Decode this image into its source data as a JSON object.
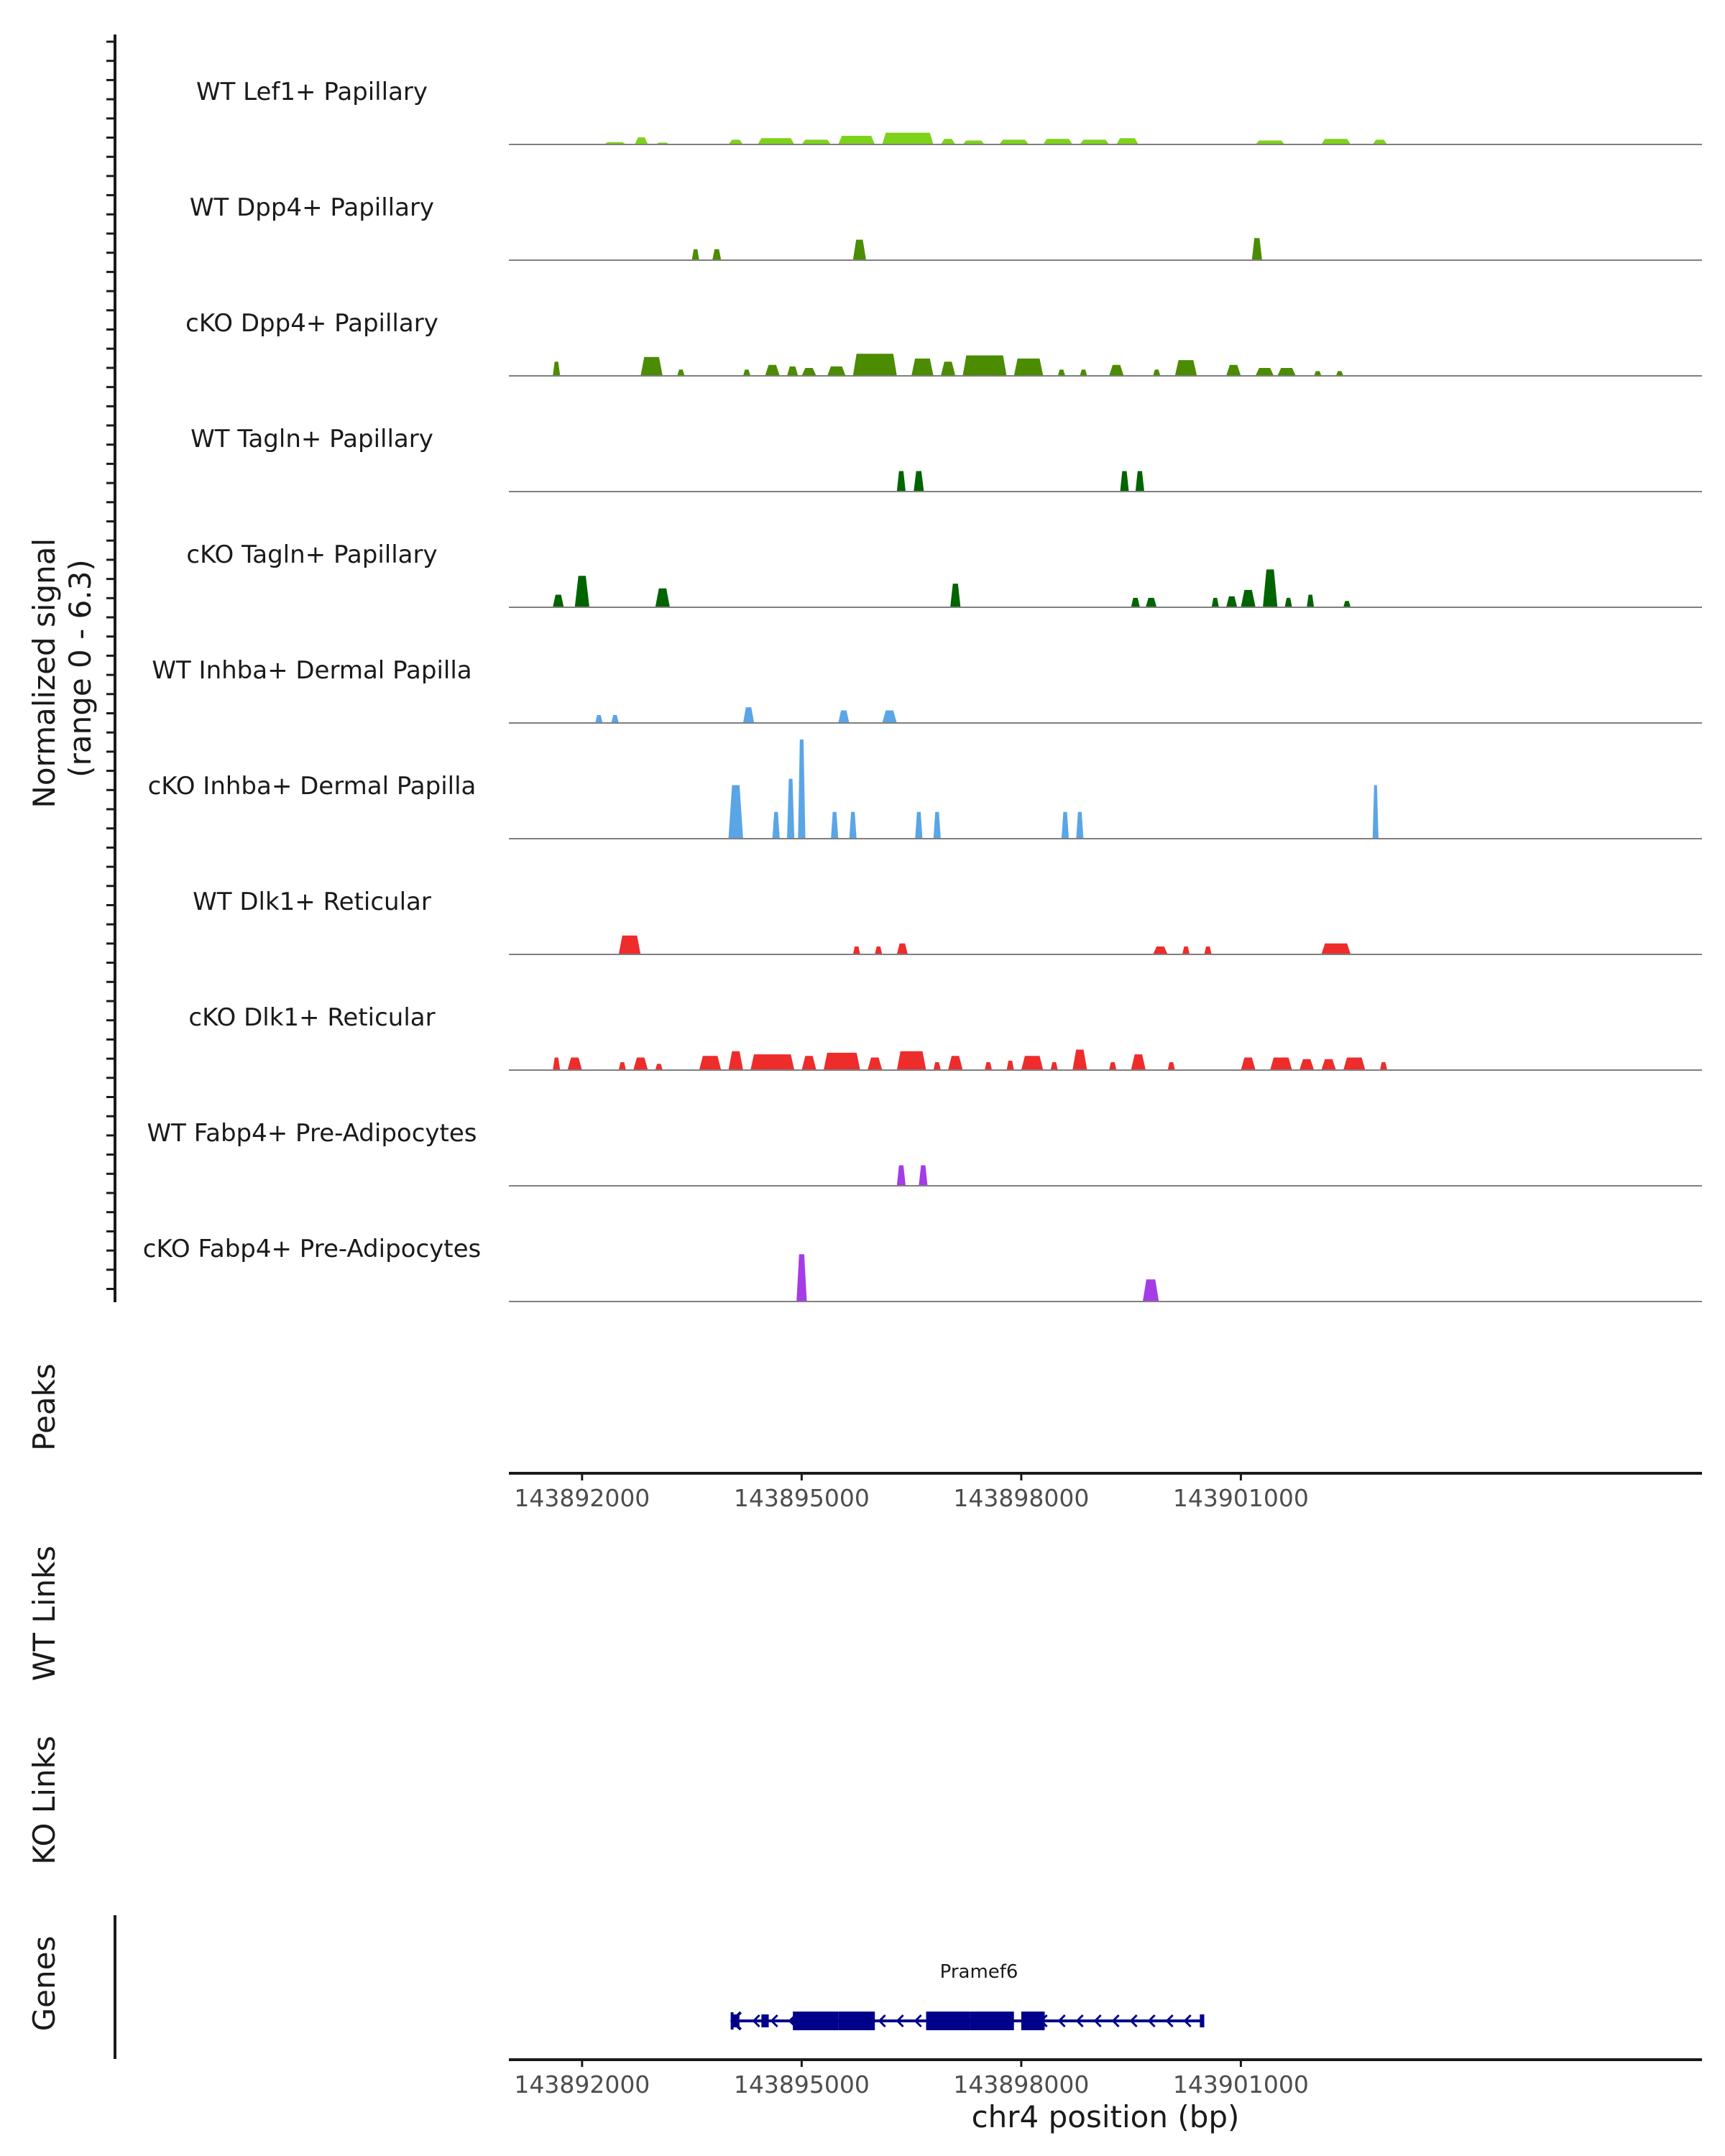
{
  "chart_data": {
    "type": "area",
    "title": "",
    "ylabel": "Normalized signal\n(range 0 - 6.3)",
    "ylabel_lines": [
      "Normalized signal",
      "(range 0 - 6.3)"
    ],
    "ylim": [
      0,
      6.3
    ],
    "xlabel": "chr4 position (bp)",
    "xlim": [
      143891000,
      143907300
    ],
    "x_ticks": [
      143892000,
      143895000,
      143898000,
      143901000
    ],
    "x_tick_labels": [
      "143892000",
      "143895000",
      "143898000",
      "143901000"
    ],
    "tracks": [
      {
        "name": "WT Lef1+ Papillary",
        "color": "#7FD21B",
        "peaks": [
          [
            143892300,
            143892600,
            0.15
          ],
          [
            143892720,
            143892900,
            0.45
          ],
          [
            143893000,
            143893200,
            0.12
          ],
          [
            143894000,
            143894200,
            0.3
          ],
          [
            143894400,
            143894900,
            0.4
          ],
          [
            143895000,
            143895400,
            0.3
          ],
          [
            143895500,
            143896000,
            0.55
          ],
          [
            143896100,
            143896800,
            0.75
          ],
          [
            143896900,
            143897100,
            0.35
          ],
          [
            143897200,
            143897500,
            0.25
          ],
          [
            143897700,
            143898100,
            0.3
          ],
          [
            143898300,
            143898700,
            0.35
          ],
          [
            143898800,
            143899200,
            0.3
          ],
          [
            143899300,
            143899600,
            0.4
          ],
          [
            143901200,
            143901600,
            0.25
          ],
          [
            143902100,
            143902500,
            0.35
          ],
          [
            143902800,
            143903000,
            0.3
          ]
        ]
      },
      {
        "name": "WT Dpp4+ Papillary",
        "color": "#4B8C00",
        "peaks": [
          [
            143893500,
            143893600,
            0.7
          ],
          [
            143893780,
            143893900,
            0.7
          ],
          [
            143895700,
            143895880,
            1.3
          ],
          [
            143901150,
            143901290,
            1.4
          ]
        ]
      },
      {
        "name": "cKO Dpp4+ Papillary",
        "color": "#4B8C00",
        "peaks": [
          [
            143891600,
            143891700,
            0.9
          ],
          [
            143892800,
            143893100,
            1.2
          ],
          [
            143893300,
            143893400,
            0.4
          ],
          [
            143894200,
            143894300,
            0.4
          ],
          [
            143894500,
            143894700,
            0.7
          ],
          [
            143894800,
            143894950,
            0.6
          ],
          [
            143895000,
            143895200,
            0.5
          ],
          [
            143895350,
            143895600,
            0.6
          ],
          [
            143895700,
            143896300,
            1.4
          ],
          [
            143896500,
            143896800,
            1.1
          ],
          [
            143896900,
            143897100,
            0.9
          ],
          [
            143897200,
            143897800,
            1.3
          ],
          [
            143897900,
            143898300,
            1.1
          ],
          [
            143898500,
            143898600,
            0.4
          ],
          [
            143898800,
            143898900,
            0.4
          ],
          [
            143899200,
            143899400,
            0.7
          ],
          [
            143899800,
            143899900,
            0.4
          ],
          [
            143900100,
            143900400,
            1.0
          ],
          [
            143900800,
            143901000,
            0.7
          ],
          [
            143901200,
            143901450,
            0.5
          ],
          [
            143901500,
            143901750,
            0.5
          ],
          [
            143902000,
            143902100,
            0.3
          ],
          [
            143902300,
            143902400,
            0.3
          ]
        ]
      },
      {
        "name": "WT Tagln+ Papillary",
        "color": "#006400",
        "peaks": [
          [
            143896300,
            143896420,
            1.3
          ],
          [
            143896530,
            143896670,
            1.3
          ],
          [
            143899350,
            143899470,
            1.3
          ],
          [
            143899560,
            143899680,
            1.3
          ]
        ]
      },
      {
        "name": "cKO Tagln+ Papillary",
        "color": "#006400",
        "peaks": [
          [
            143891600,
            143891750,
            0.8
          ],
          [
            143891900,
            143892100,
            2.0
          ],
          [
            143893000,
            143893200,
            1.2
          ],
          [
            143897030,
            143897170,
            1.5
          ],
          [
            143899500,
            143899620,
            0.6
          ],
          [
            143899700,
            143899850,
            0.6
          ],
          [
            143900600,
            143900700,
            0.6
          ],
          [
            143900800,
            143900950,
            0.7
          ],
          [
            143901000,
            143901200,
            1.1
          ],
          [
            143901300,
            143901500,
            2.4
          ],
          [
            143901600,
            143901700,
            0.6
          ],
          [
            143901900,
            143902000,
            0.8
          ],
          [
            143902400,
            143902500,
            0.4
          ]
        ]
      },
      {
        "name": "WT Inhba+ Dermal Papilla",
        "color": "#5AA5E6",
        "peaks": [
          [
            143892180,
            143892280,
            0.5
          ],
          [
            143892400,
            143892500,
            0.5
          ],
          [
            143894200,
            143894350,
            1.0
          ],
          [
            143895500,
            143895650,
            0.8
          ],
          [
            143896100,
            143896300,
            0.8
          ]
        ]
      },
      {
        "name": "cKO Inhba+ Dermal Papilla",
        "color": "#5AA5E6",
        "peaks": [
          [
            143894000,
            143894200,
            3.4
          ],
          [
            143894600,
            143894700,
            1.7
          ],
          [
            143894800,
            143894900,
            3.8
          ],
          [
            143894950,
            143895050,
            6.3
          ],
          [
            143895400,
            143895500,
            1.7
          ],
          [
            143895650,
            143895750,
            1.7
          ],
          [
            143896550,
            143896650,
            1.7
          ],
          [
            143896800,
            143896900,
            1.7
          ],
          [
            143898550,
            143898650,
            1.7
          ],
          [
            143898750,
            143898850,
            1.7
          ],
          [
            143902800,
            143902880,
            3.4
          ]
        ]
      },
      {
        "name": "WT Dlk1+ Reticular",
        "color": "#EE2C2C",
        "peaks": [
          [
            143892500,
            143892800,
            1.2
          ],
          [
            143895700,
            143895800,
            0.5
          ],
          [
            143896000,
            143896100,
            0.5
          ],
          [
            143896300,
            143896450,
            0.7
          ],
          [
            143899800,
            143900000,
            0.5
          ],
          [
            143900200,
            143900300,
            0.5
          ],
          [
            143900500,
            143900600,
            0.5
          ],
          [
            143902100,
            143902500,
            0.7
          ]
        ]
      },
      {
        "name": "cKO Dlk1+ Reticular",
        "color": "#EE2C2C",
        "peaks": [
          [
            143891600,
            143891700,
            0.8
          ],
          [
            143891800,
            143892000,
            0.8
          ],
          [
            143892500,
            143892600,
            0.5
          ],
          [
            143892700,
            143892900,
            0.8
          ],
          [
            143893000,
            143893100,
            0.4
          ],
          [
            143893600,
            143893900,
            0.9
          ],
          [
            143894000,
            143894200,
            1.2
          ],
          [
            143894300,
            143894900,
            1.0
          ],
          [
            143895000,
            143895200,
            0.9
          ],
          [
            143895300,
            143895800,
            1.1
          ],
          [
            143895900,
            143896100,
            0.8
          ],
          [
            143896300,
            143896700,
            1.2
          ],
          [
            143896800,
            143896900,
            0.5
          ],
          [
            143897000,
            143897200,
            0.9
          ],
          [
            143897500,
            143897600,
            0.5
          ],
          [
            143897800,
            143897900,
            0.6
          ],
          [
            143898000,
            143898300,
            0.9
          ],
          [
            143898400,
            143898500,
            0.5
          ],
          [
            143898700,
            143898900,
            1.3
          ],
          [
            143899200,
            143899300,
            0.5
          ],
          [
            143899500,
            143899700,
            1.0
          ],
          [
            143900000,
            143900100,
            0.5
          ],
          [
            143901000,
            143901200,
            0.8
          ],
          [
            143901400,
            143901700,
            0.8
          ],
          [
            143901800,
            143902000,
            0.7
          ],
          [
            143902100,
            143902300,
            0.7
          ],
          [
            143902400,
            143902700,
            0.8
          ],
          [
            143902900,
            143903000,
            0.5
          ]
        ]
      },
      {
        "name": "WT Fabp4+ Pre-Adipocytes",
        "color": "#A53CE6",
        "peaks": [
          [
            143896300,
            143896420,
            1.3
          ],
          [
            143896600,
            143896720,
            1.3
          ]
        ]
      },
      {
        "name": "cKO Fabp4+ Pre-Adipocytes",
        "color": "#A53CE6",
        "peaks": [
          [
            143894930,
            143895070,
            3.0
          ],
          [
            143899660,
            143899880,
            1.4
          ]
        ]
      }
    ],
    "peaks_track": {
      "label": "Peaks",
      "items": []
    },
    "link_tracks": [
      {
        "label": "WT Links",
        "items": []
      },
      {
        "label": "KO Links",
        "items": []
      }
    ],
    "genes_track": {
      "label": "Genes",
      "gene": {
        "name": "Pramef6",
        "strand": "-",
        "color": "#00008B",
        "start": 143894050,
        "end": 143900500,
        "exons": [
          [
            143894050,
            143894150
          ],
          [
            143894450,
            143894550
          ],
          [
            143894880,
            143895500
          ],
          [
            143895500,
            143896000
          ],
          [
            143896700,
            143897300
          ],
          [
            143897300,
            143897900
          ],
          [
            143898000,
            143898320
          ],
          [
            143900440,
            143900500
          ]
        ]
      }
    }
  }
}
